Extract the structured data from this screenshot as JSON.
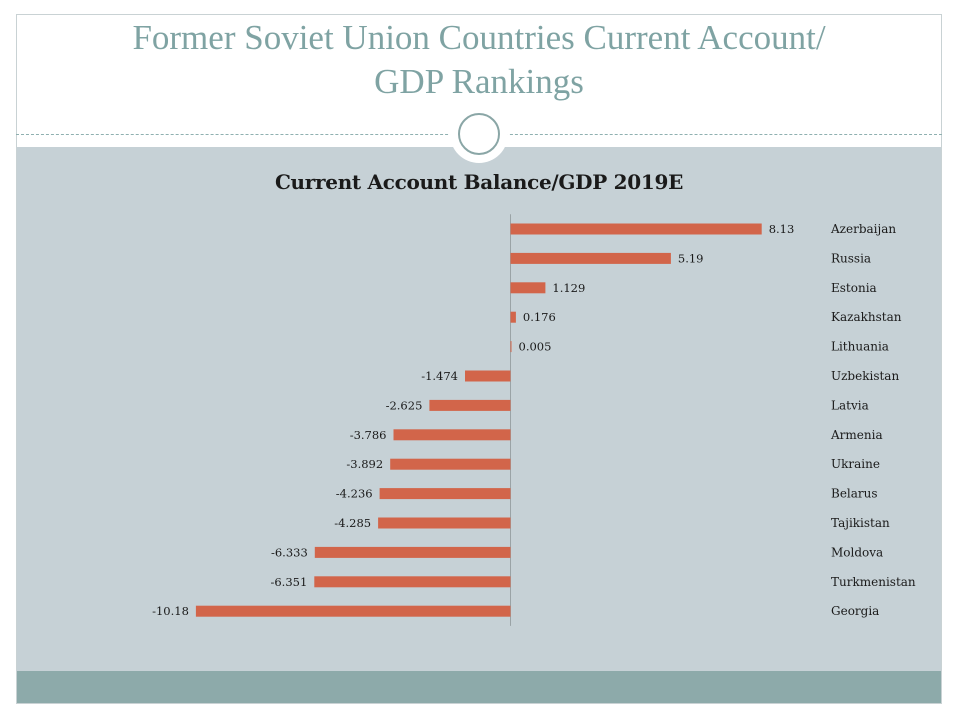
{
  "slide": {
    "title_line1": "Former Soviet Union Countries Current Account/",
    "title_line2": "GDP Rankings"
  },
  "colors": {
    "bar": "#d2654a",
    "title": "#7fa3a3",
    "content_bg": "#c6d1d6",
    "footer_band": "#8daaaa"
  },
  "chart_data": {
    "type": "bar",
    "orientation": "horizontal",
    "title": "Current Account Balance/GDP 2019E",
    "categories": [
      "Azerbaijan",
      "Russia",
      "Estonia",
      "Kazakhstan",
      "Lithuania",
      "Uzbekistan",
      "Latvia",
      "Armenia",
      "Ukraine",
      "Belarus",
      "Tajikistan",
      "Moldova",
      "Turkmenistan",
      "Georgia"
    ],
    "values": [
      8.13,
      5.19,
      1.129,
      0.176,
      0.005,
      -1.474,
      -2.625,
      -3.786,
      -3.892,
      -4.236,
      -4.285,
      -6.333,
      -6.351,
      -10.18
    ],
    "value_labels": [
      "8.13",
      "5.19",
      "1.129",
      "0.176",
      "0.005",
      "-1.474",
      "-2.625",
      "-3.786",
      "-3.892",
      "-4.236",
      "-4.285",
      "-6.333",
      "-6.351",
      "-10.18"
    ],
    "category_labels_position": "right",
    "grid": false,
    "legend": false
  }
}
